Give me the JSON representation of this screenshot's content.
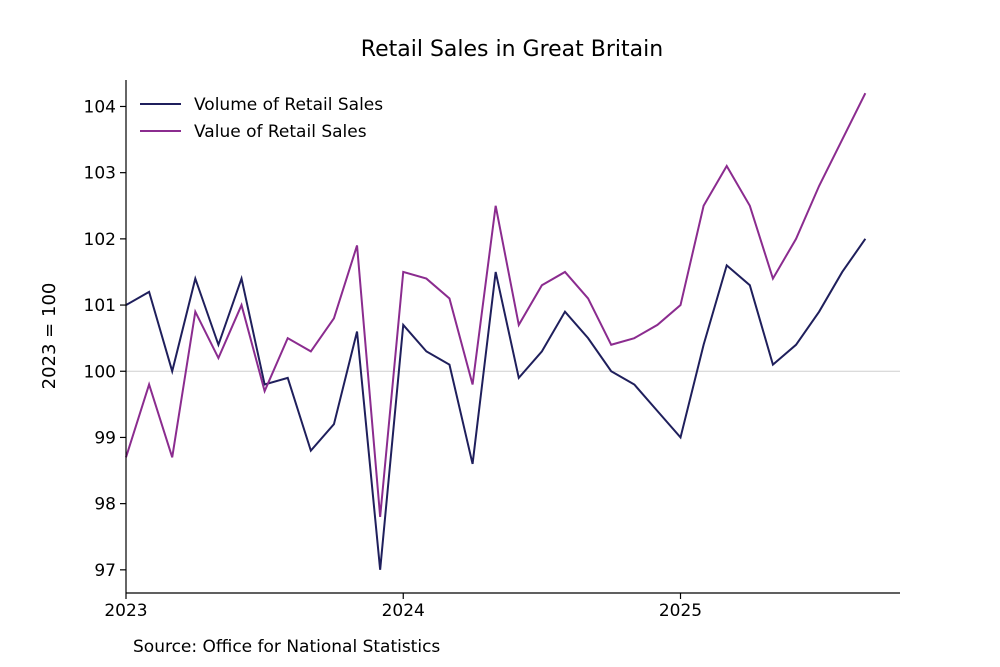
{
  "chart_data": {
    "type": "line",
    "title": "Retail Sales in Great Britain",
    "xlabel": "",
    "ylabel": "2023 = 100",
    "x": [
      "2023-01",
      "2023-02",
      "2023-03",
      "2023-04",
      "2023-05",
      "2023-06",
      "2023-07",
      "2023-08",
      "2023-09",
      "2023-10",
      "2023-11",
      "2023-12",
      "2024-01",
      "2024-02",
      "2024-03",
      "2024-04",
      "2024-05",
      "2024-06",
      "2024-07",
      "2024-08",
      "2024-09",
      "2024-10",
      "2024-11",
      "2024-12",
      "2025-01",
      "2025-02",
      "2025-03",
      "2025-04",
      "2025-05",
      "2025-06",
      "2025-07",
      "2025-08",
      "2025-09"
    ],
    "xticks": [
      "2023",
      "2024",
      "2025"
    ],
    "xlim": [
      0,
      33.5
    ],
    "yticks": [
      97,
      98,
      99,
      100,
      101,
      102,
      103,
      104
    ],
    "ylim": [
      96.65,
      104.4
    ],
    "reference_line": 100,
    "legend_position": "upper-left",
    "series": [
      {
        "name": "Volume of Retail Sales",
        "color": "#1f1f5c",
        "values": [
          101.0,
          101.2,
          100.0,
          101.4,
          100.4,
          101.4,
          99.8,
          99.9,
          98.8,
          99.2,
          100.6,
          97.0,
          100.7,
          100.3,
          100.1,
          98.6,
          101.5,
          99.9,
          100.3,
          100.9,
          100.5,
          100.0,
          99.8,
          99.4,
          99.0,
          100.4,
          101.6,
          101.3,
          100.1,
          100.4,
          100.9,
          101.5,
          102.0
        ]
      },
      {
        "name": "Value of Retail Sales",
        "color": "#8b2c8f",
        "values": [
          98.7,
          99.8,
          98.7,
          100.9,
          100.2,
          101.0,
          99.7,
          100.5,
          100.3,
          100.8,
          101.9,
          97.8,
          101.5,
          101.4,
          101.1,
          99.8,
          102.5,
          100.7,
          101.3,
          101.5,
          101.1,
          100.4,
          100.5,
          100.7,
          101.0,
          102.5,
          103.1,
          102.5,
          101.4,
          102.0,
          102.8,
          103.5,
          104.2
        ]
      }
    ]
  },
  "source_note": "Source: Office for National Statistics"
}
